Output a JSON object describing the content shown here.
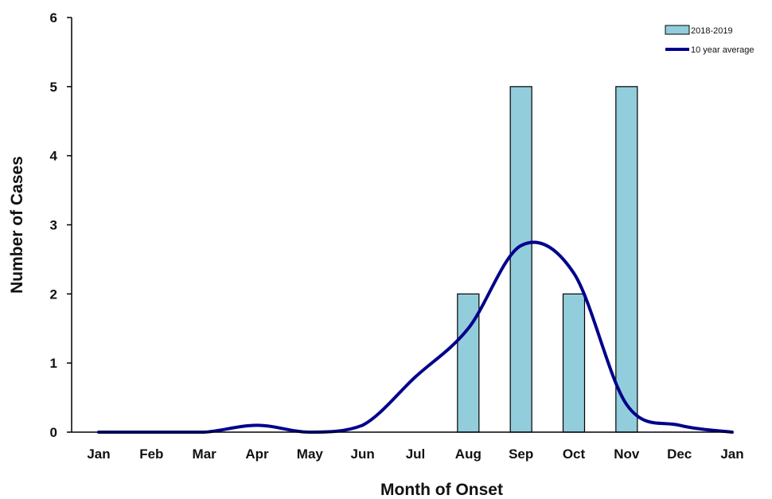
{
  "chart_data": {
    "type": "bar",
    "xlabel": "Month of Onset",
    "ylabel": "Number of Cases",
    "ylim": [
      0,
      6
    ],
    "yticks": [
      0,
      1,
      2,
      3,
      4,
      5,
      6
    ],
    "categories": [
      "Jan",
      "Feb",
      "Mar",
      "Apr",
      "May",
      "Jun",
      "Jul",
      "Aug",
      "Sep",
      "Oct",
      "Nov",
      "Dec",
      "Jan"
    ],
    "legend_position": "top-right",
    "grid": false,
    "series": [
      {
        "name": "2018-2019",
        "type": "bar",
        "color": "#92CDDC",
        "values": [
          0,
          0,
          0,
          0,
          0,
          0,
          0,
          2,
          5,
          2,
          5,
          0,
          0
        ]
      },
      {
        "name": "10 year average",
        "type": "line",
        "smooth": true,
        "color": "#00008B",
        "values": [
          0,
          0,
          0,
          0.1,
          0,
          0.1,
          0.8,
          1.5,
          2.7,
          2.3,
          0.4,
          0.1,
          0
        ]
      }
    ]
  }
}
